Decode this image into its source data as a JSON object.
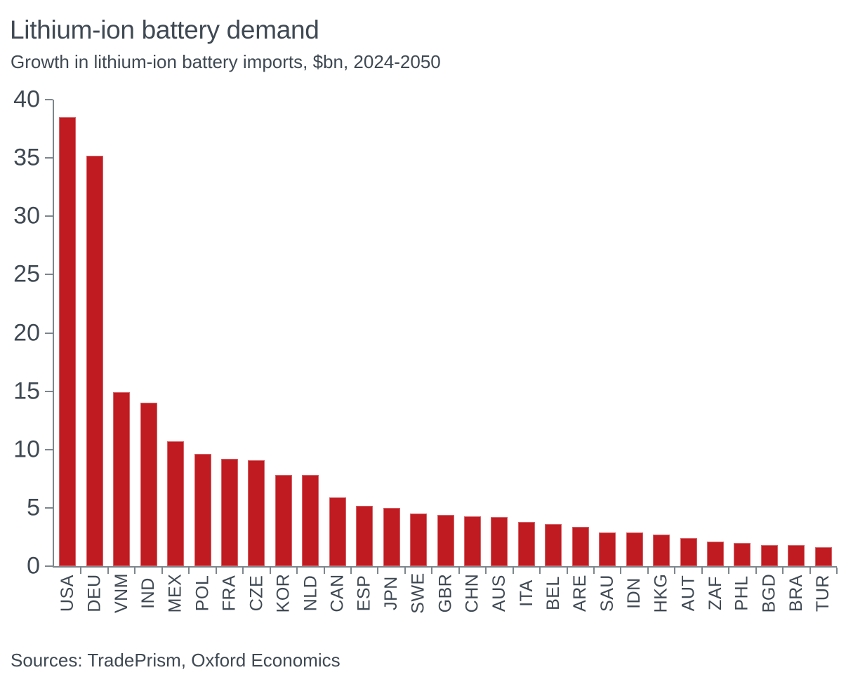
{
  "header": {
    "title": "Lithium-ion battery demand",
    "subtitle": "Growth in lithium-ion battery imports, $bn, 2024-2050"
  },
  "footer": {
    "sources": "Sources: TradePrism, Oxford Economics"
  },
  "chart_data": {
    "type": "bar",
    "title": "Lithium-ion battery demand",
    "subtitle": "Growth in lithium-ion battery imports, $bn, 2024-2050",
    "categories": [
      "USA",
      "DEU",
      "VNM",
      "IND",
      "MEX",
      "POL",
      "FRA",
      "CZE",
      "KOR",
      "NLD",
      "CAN",
      "ESP",
      "JPN",
      "SWE",
      "GBR",
      "CHN",
      "AUS",
      "ITA",
      "BEL",
      "ARE",
      "SAU",
      "IDN",
      "HKG",
      "AUT",
      "ZAF",
      "PHL",
      "BGD",
      "BRA",
      "TUR"
    ],
    "values": [
      38.5,
      35.2,
      14.9,
      14.0,
      10.7,
      9.6,
      9.2,
      9.1,
      7.8,
      7.8,
      5.9,
      5.2,
      5.0,
      4.5,
      4.4,
      4.3,
      4.2,
      3.8,
      3.6,
      3.4,
      2.9,
      2.9,
      2.7,
      2.4,
      2.1,
      2.0,
      1.8,
      1.8,
      1.6
    ],
    "xlabel": "",
    "ylabel": "",
    "ylim": [
      0,
      40
    ],
    "yticks": [
      0,
      5,
      10,
      15,
      20,
      25,
      30,
      35,
      40
    ],
    "grid": false,
    "legend": "none",
    "bar_color": "#C01B21",
    "axis_color": "#7D868D",
    "text_color": "#3F4953",
    "sources": "Sources: TradePrism, Oxford Economics"
  }
}
